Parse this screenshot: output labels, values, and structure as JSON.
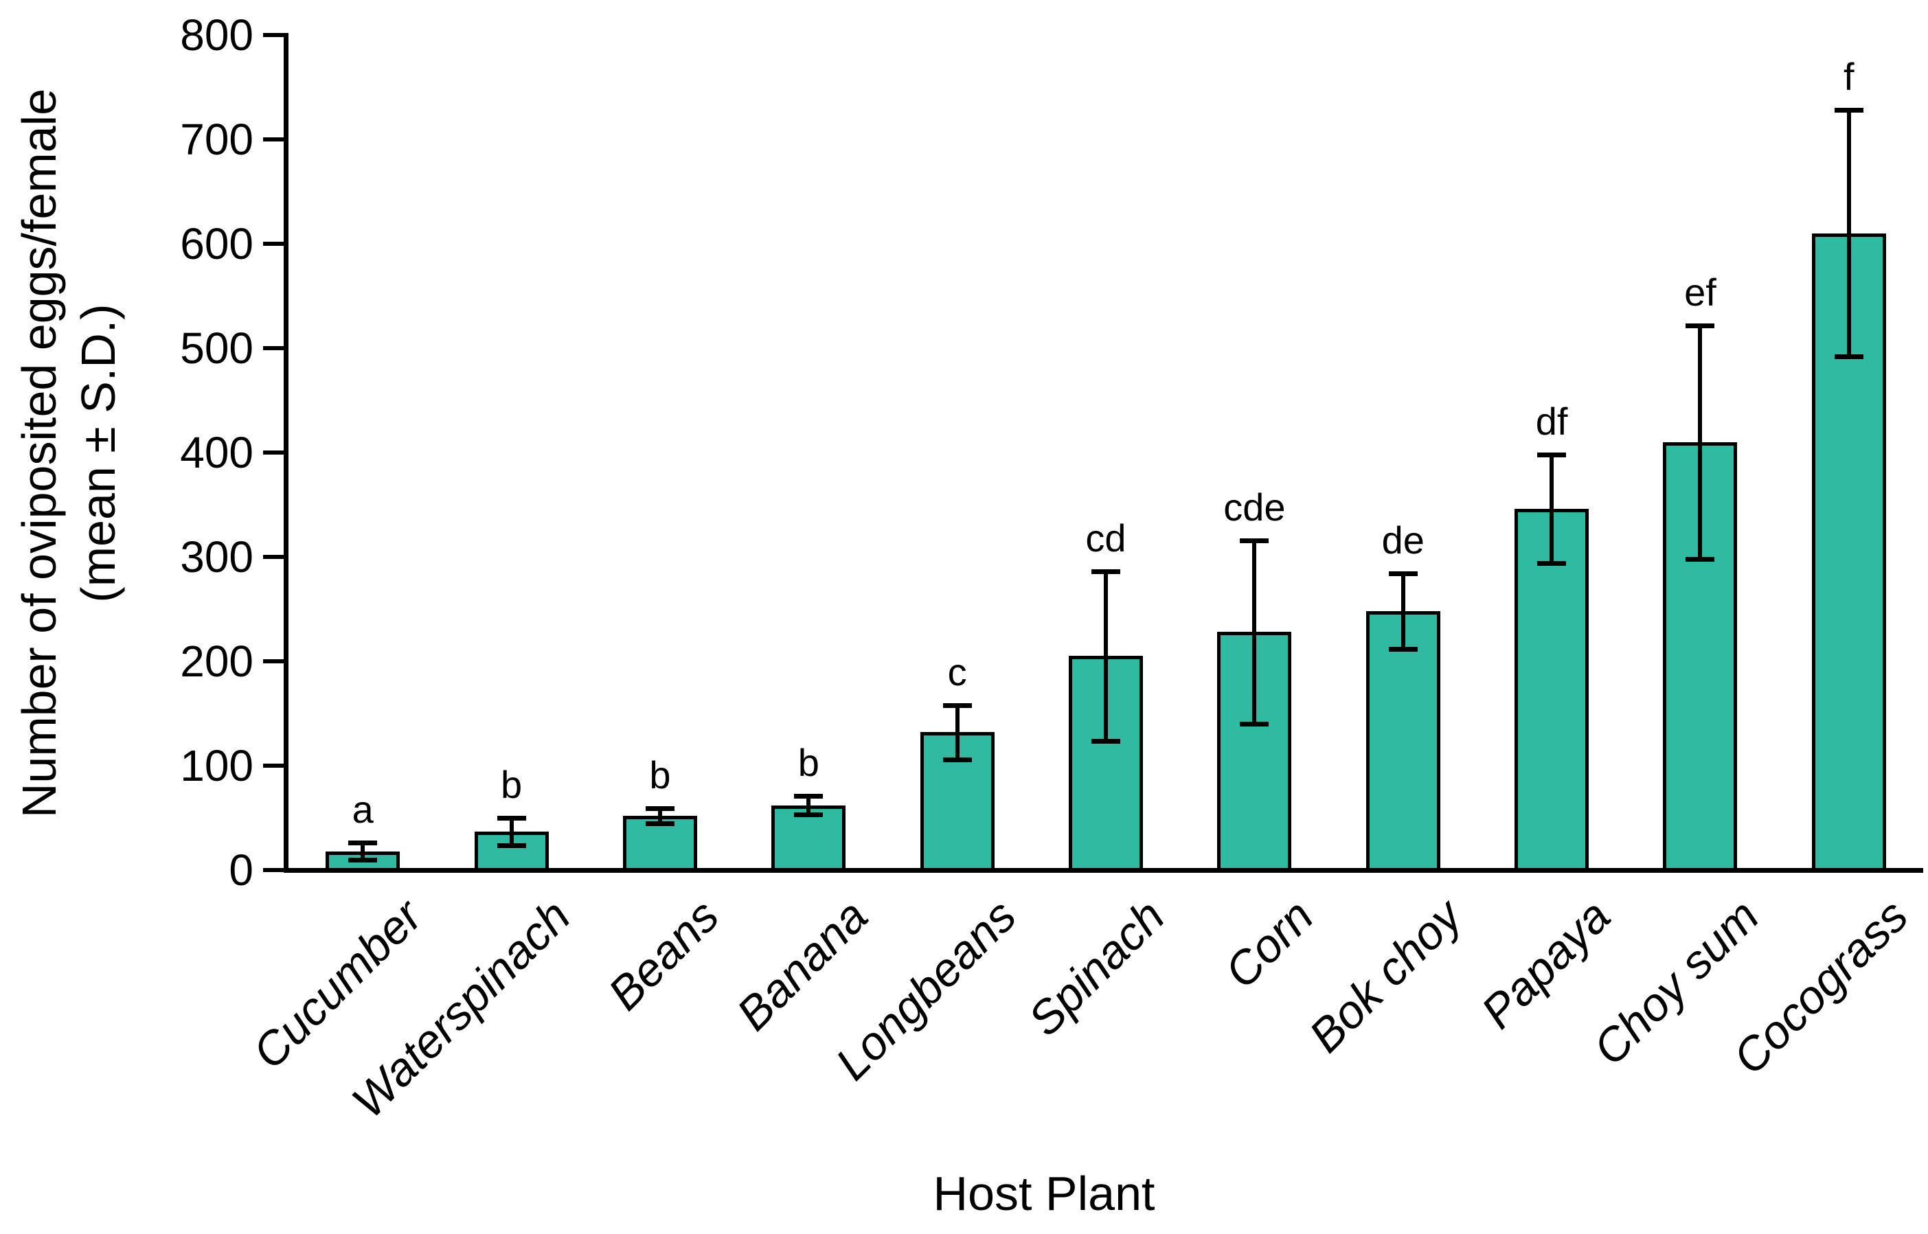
{
  "chart_data": {
    "type": "bar",
    "title": "",
    "xlabel": "Host Plant",
    "ylabel_line1": "Number of oviposited eggs/female",
    "ylabel_line2": "(mean ± S.D.)",
    "categories": [
      "Cucumber",
      "Waterspinach",
      "Beans",
      "Banana",
      "Longbeans",
      "Spinach",
      "Corn",
      "Bok choy",
      "Papaya",
      "Choy sum",
      "Cocograss"
    ],
    "values": [
      18,
      37,
      52,
      62,
      132,
      205,
      228,
      248,
      346,
      410,
      610
    ],
    "errors_sd": [
      8,
      13,
      7,
      9,
      26,
      81,
      88,
      36,
      52,
      112,
      118
    ],
    "sig_letters": [
      "a",
      "b",
      "b",
      "b",
      "c",
      "cd",
      "cde",
      "de",
      "df",
      "ef",
      "f"
    ],
    "ylim": [
      0,
      800
    ],
    "ytick_step": 100,
    "ytick_labels": [
      "0",
      "100",
      "200",
      "300",
      "400",
      "500",
      "600",
      "700",
      "800"
    ],
    "bar_color": "#2EBBA2",
    "bar_border_color": "#000000",
    "axis_color": "#000000",
    "grid": false,
    "legend": "none"
  }
}
